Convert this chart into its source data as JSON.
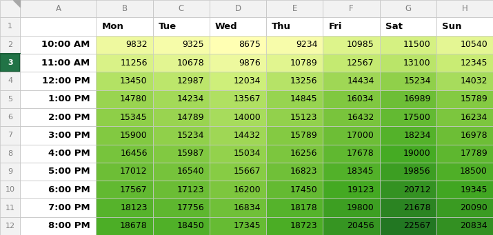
{
  "columns": [
    "Mon",
    "Tue",
    "Wed",
    "Thu",
    "Fri",
    "Sat",
    "Sun"
  ],
  "rows": [
    "10:00 AM",
    "11:00 AM",
    "12:00 PM",
    "1:00 PM",
    "2:00 PM",
    "3:00 PM",
    "4:00 PM",
    "5:00 PM",
    "6:00 PM",
    "7:00 PM",
    "8:00 PM"
  ],
  "values": [
    [
      9832,
      9325,
      8675,
      9234,
      10985,
      11500,
      10540
    ],
    [
      11256,
      10678,
      9876,
      10789,
      12567,
      13100,
      12345
    ],
    [
      13450,
      12987,
      12034,
      13256,
      14434,
      15234,
      14032
    ],
    [
      14780,
      14234,
      13567,
      14845,
      16034,
      16989,
      15789
    ],
    [
      15345,
      14789,
      14000,
      15123,
      16432,
      17500,
      16234
    ],
    [
      15900,
      15234,
      14432,
      15789,
      17000,
      18234,
      16978
    ],
    [
      16456,
      15987,
      15034,
      16256,
      17678,
      19000,
      17789
    ],
    [
      17012,
      16540,
      15667,
      16823,
      18345,
      19856,
      18500
    ],
    [
      17567,
      17123,
      16200,
      17450,
      19123,
      20712,
      19345
    ],
    [
      18123,
      17756,
      16834,
      18178,
      19800,
      21678,
      20090
    ],
    [
      18678,
      18450,
      17345,
      18723,
      20456,
      22567,
      20834
    ]
  ],
  "col_letters_row": [
    "A",
    "B",
    "C",
    "D",
    "E",
    "F",
    "G",
    "H"
  ],
  "selected_row_index": 1,
  "selected_row_num": "3",
  "row_num_selected_bg": "#217346",
  "row_num_selected_fg": "#ffffff",
  "row_num_selected_border": "#1a5e38",
  "header_letter_color": "#808080",
  "header_num_color": "#808080",
  "grid_bg": "#f2f2f2",
  "time_col_bg": "#ffffff",
  "day_header_bg": "#ffffff",
  "border_color": "#d0d0d0",
  "text_color": "#000000",
  "colormap_stops": [
    "#FFFFB3",
    "#CCEE77",
    "#88CC44",
    "#44AA22",
    "#227722"
  ],
  "vmin": 8675,
  "vmax": 22567
}
